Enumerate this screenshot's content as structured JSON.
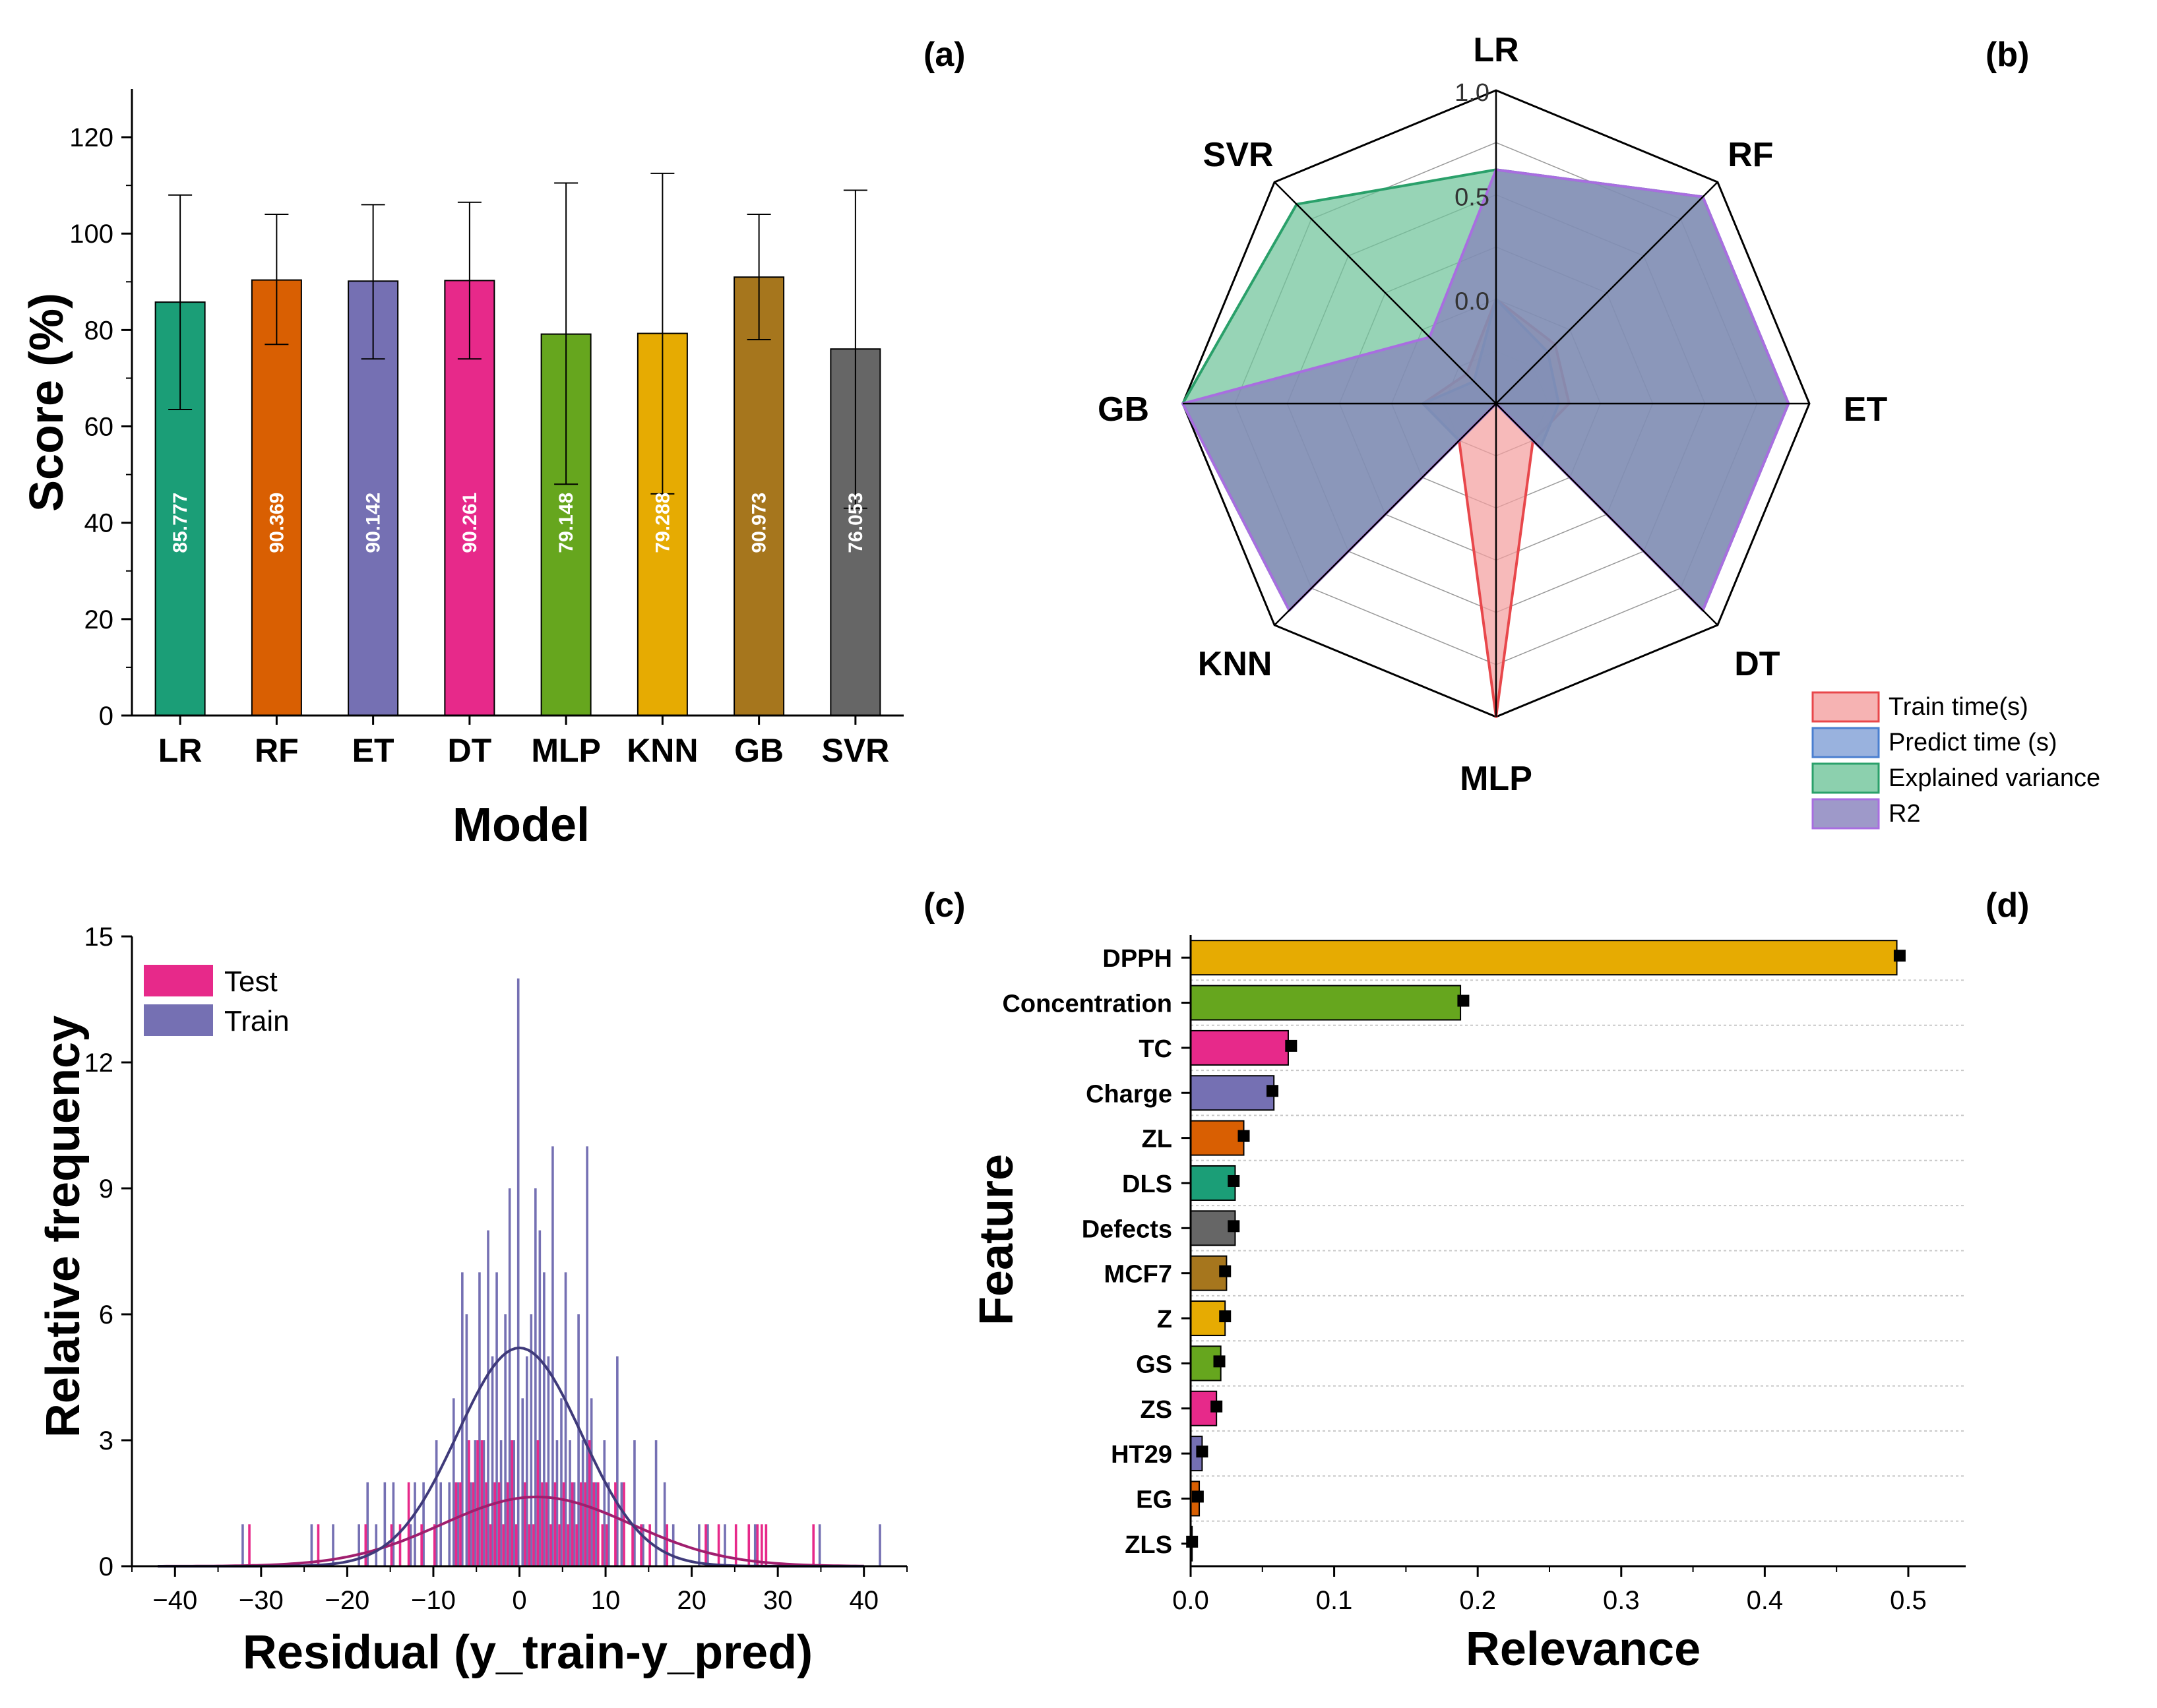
{
  "figure": {
    "panel_labels": [
      "(a)",
      "(b)",
      "(c)",
      "(d)"
    ],
    "colors": {
      "teal": "#1b9e77",
      "orange": "#d95f02",
      "purple": "#7570b3",
      "pink": "#e7298a",
      "green": "#66a61e",
      "gold": "#e6ab02",
      "brown": "#a6761d",
      "gray": "#666666"
    }
  },
  "chart_data": [
    {
      "id": "a",
      "type": "bar",
      "title": "",
      "xlabel": "Model",
      "ylabel": "Score (%)",
      "ylim": [
        0,
        130
      ],
      "yticks": [
        0,
        20,
        40,
        60,
        80,
        100,
        120
      ],
      "categories": [
        "LR",
        "RF",
        "ET",
        "DT",
        "MLP",
        "KNN",
        "GB",
        "SVR"
      ],
      "values": [
        85.777,
        90.369,
        90.142,
        90.261,
        79.148,
        79.288,
        90.973,
        76.053
      ],
      "value_labels": [
        "85.777",
        "90.369",
        "90.142",
        "90.261",
        "79.148",
        "79.288",
        "90.973",
        "76.053"
      ],
      "error_upper": [
        108,
        104,
        106,
        106.5,
        110.5,
        112.5,
        104,
        109
      ],
      "error_lower": [
        63.5,
        77,
        74,
        74,
        48,
        46,
        78,
        43
      ],
      "colors": [
        "#1b9e77",
        "#d95f02",
        "#7570b3",
        "#e7298a",
        "#66a61e",
        "#e6ab02",
        "#a6761d",
        "#666666"
      ]
    },
    {
      "id": "b",
      "type": "radar",
      "axes": [
        "LR",
        "RF",
        "ET",
        "DT",
        "MLP",
        "KNN",
        "GB",
        "SVR"
      ],
      "rlim": [
        -0.5,
        1.0
      ],
      "rticks": [
        0.0,
        0.5,
        1.0
      ],
      "rtick_labels": [
        "0.0",
        "0.5",
        "1.0"
      ],
      "series": [
        {
          "name": "Train time(s)",
          "values": [
            0.0,
            -0.1,
            -0.15,
            -0.25,
            1.0,
            -0.25,
            -0.15,
            -0.3
          ],
          "fill": "#f4a0a0",
          "stroke": "#e8474b"
        },
        {
          "name": "Predict time (s)",
          "values": [
            0.0,
            -0.15,
            -0.2,
            -0.2,
            -0.5,
            -0.25,
            -0.15,
            -0.35
          ],
          "fill": "#7f9fd6",
          "stroke": "#4a7fd0"
        },
        {
          "name": "Explained variance",
          "values": [
            0.62,
            0.9,
            0.9,
            0.9,
            -0.5,
            0.9,
            1.0,
            0.85
          ],
          "fill": "#6fc49a",
          "stroke": "#2aa06a"
        },
        {
          "name": "R2",
          "values": [
            0.62,
            0.9,
            0.9,
            0.9,
            -0.5,
            0.9,
            1.0,
            -0.05
          ],
          "fill": "#8680bb",
          "stroke": "#a86ee0"
        }
      ]
    },
    {
      "id": "c",
      "type": "histogram",
      "xlabel": "Residual (y_train-y_pred)",
      "ylabel": "Relative frequency",
      "xlim": [
        -45,
        45
      ],
      "ylim": [
        0,
        15
      ],
      "xticks": [
        -40,
        -30,
        -20,
        -10,
        0,
        10,
        20,
        30,
        40
      ],
      "xtick_labels": [
        "−40",
        "−30",
        "−20",
        "−10",
        "0",
        "10",
        "20",
        "30",
        "40"
      ],
      "yticks": [
        0,
        3,
        6,
        9,
        12,
        15
      ],
      "legend": [
        "Test",
        "Train"
      ],
      "series": [
        {
          "name": "Test",
          "color": "#e7298a",
          "x": [
            -31.5,
            -23.5,
            -18,
            -15,
            -14,
            -13,
            -11.5,
            -10,
            -7.5,
            -7,
            -6,
            -5.5,
            -5,
            -4.5,
            -4,
            -3.5,
            -3,
            -2.5,
            -2,
            -1.5,
            -1,
            -0.5,
            0.5,
            1,
            1.5,
            2,
            2.5,
            3,
            3.5,
            4,
            4.5,
            5,
            5.5,
            6,
            6.5,
            7,
            7.5,
            8,
            8.5,
            9,
            9.5,
            10,
            11,
            12,
            13,
            14,
            15,
            17,
            21.5,
            23,
            25,
            26.5,
            27.5,
            28,
            28.5,
            34
          ],
          "y": [
            1,
            1,
            1,
            1,
            1,
            2,
            1,
            1,
            2,
            2,
            3,
            2,
            3,
            3,
            2,
            1,
            2,
            2,
            1,
            2,
            3,
            1,
            2,
            1,
            1,
            3,
            2,
            2,
            1,
            2,
            1,
            2,
            1,
            2,
            1,
            2,
            2,
            3,
            2,
            2,
            1,
            1,
            2,
            2,
            1,
            1,
            1,
            1,
            1,
            1,
            1,
            1,
            1,
            1,
            1,
            1
          ]
        },
        {
          "name": "Train",
          "color": "#7570b3",
          "x": [
            -32,
            -24,
            -21.5,
            -18.5,
            -17.5,
            -16.5,
            -15.5,
            -14.5,
            -12.5,
            -12,
            -11,
            -9.5,
            -9,
            -8,
            -7.5,
            -7,
            -6.5,
            -6,
            -5.5,
            -5,
            -4.5,
            -4,
            -3.5,
            -3,
            -2.5,
            -2,
            -1.5,
            -1,
            -0.5,
            0,
            0.5,
            1,
            1.5,
            2,
            2.5,
            3,
            3.5,
            4,
            4.5,
            5,
            5.5,
            6,
            6.5,
            7,
            7.5,
            8,
            8.5,
            9,
            10,
            10.5,
            11.5,
            12,
            13.5,
            14.5,
            16,
            17,
            18,
            21,
            22,
            24,
            27.5,
            35,
            42
          ],
          "y": [
            1,
            1,
            1,
            1,
            2,
            1,
            2,
            2,
            1,
            2,
            2,
            3,
            2,
            2,
            4,
            2,
            7,
            6,
            2,
            3,
            7,
            3,
            8,
            5,
            7,
            3,
            6,
            9,
            3,
            14,
            4,
            5,
            6,
            9,
            8,
            7,
            5,
            10,
            3,
            4,
            7,
            3,
            2,
            6,
            3,
            10,
            4,
            2,
            3,
            2,
            5,
            2,
            3,
            1,
            3,
            2,
            1,
            1,
            1,
            1,
            1,
            1,
            1
          ]
        }
      ],
      "fit_curves": [
        {
          "name": "Test fit",
          "mean": 2,
          "sd": 11,
          "peak": 1.65,
          "color": "#a01e6e"
        },
        {
          "name": "Train fit",
          "mean": 0,
          "sd": 7.2,
          "peak": 5.2,
          "color": "#3f3a7a"
        }
      ]
    },
    {
      "id": "d",
      "type": "bar_horizontal",
      "xlabel": "Relevance",
      "ylabel": "Feature",
      "xlim": [
        0,
        0.54
      ],
      "xticks": [
        0.0,
        0.1,
        0.2,
        0.3,
        0.4,
        0.5
      ],
      "xtick_labels": [
        "0.0",
        "0.1",
        "0.2",
        "0.3",
        "0.4",
        "0.5"
      ],
      "categories": [
        "DPPH",
        "Concentration",
        "TC",
        "Charge",
        "ZL",
        "DLS",
        "Defects",
        "MCF7",
        "Z",
        "GS",
        "ZS",
        "HT29",
        "EG",
        "ZLS"
      ],
      "values": [
        0.492,
        0.188,
        0.068,
        0.058,
        0.037,
        0.031,
        0.031,
        0.025,
        0.024,
        0.021,
        0.018,
        0.008,
        0.006,
        0.001
      ],
      "errors": [
        0.494,
        0.19,
        0.07,
        0.057,
        0.037,
        0.03,
        0.03,
        0.024,
        0.024,
        0.02,
        0.018,
        0.008,
        0.005,
        0.001
      ],
      "colors": [
        "#e6ab02",
        "#66a61e",
        "#e7298a",
        "#7570b3",
        "#d95f02",
        "#1b9e77",
        "#666666",
        "#a6761d",
        "#e6ab02",
        "#66a61e",
        "#e7298a",
        "#7570b3",
        "#d95f02",
        "#666666"
      ]
    }
  ]
}
